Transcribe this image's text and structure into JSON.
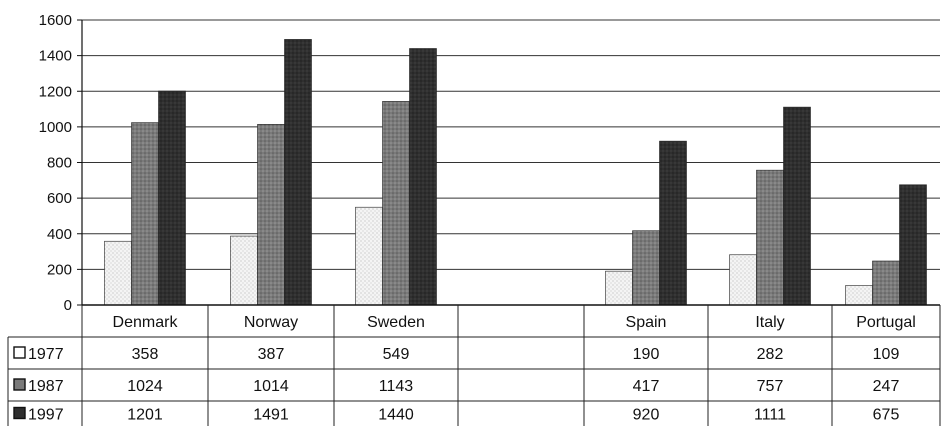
{
  "chart_data": {
    "type": "bar",
    "categories": [
      "Denmark",
      "Norway",
      "Sweden",
      "",
      "Spain",
      "Italy",
      "Portugal"
    ],
    "series": [
      {
        "name": "1977",
        "values": [
          358,
          387,
          549,
          null,
          190,
          282,
          109
        ]
      },
      {
        "name": "1987",
        "values": [
          1024,
          1014,
          1143,
          null,
          417,
          757,
          247
        ]
      },
      {
        "name": "1997",
        "values": [
          1201,
          1491,
          1440,
          null,
          920,
          1111,
          675
        ]
      }
    ],
    "ylim": [
      0,
      1600
    ],
    "yticks": [
      0,
      200,
      400,
      600,
      800,
      1000,
      1200,
      1400,
      1600
    ],
    "grid": true,
    "legend": "in data table",
    "data_table": true
  },
  "colors": {
    "series_1977": "#f2f2f2",
    "series_1987": "#7a7a7a",
    "series_1997": "#2f2f2f",
    "grid": "#333333"
  }
}
